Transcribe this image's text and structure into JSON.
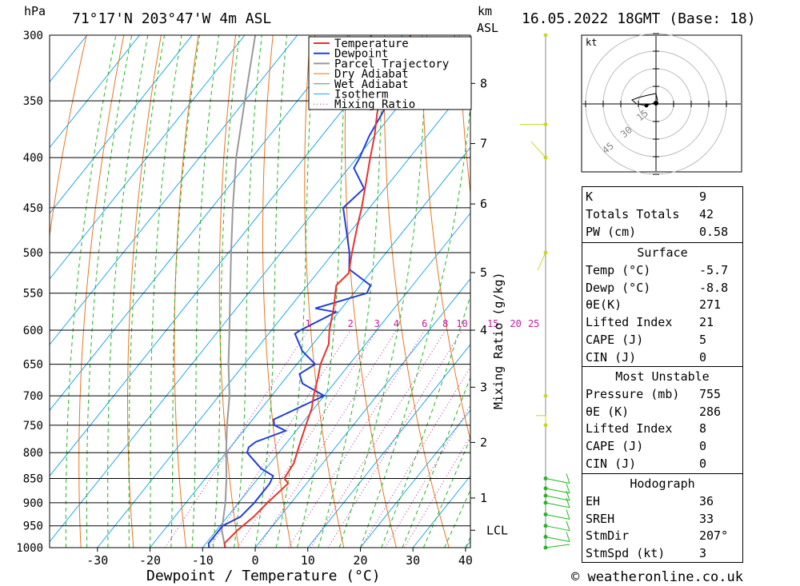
{
  "header": {
    "hpa_label": "hPa",
    "station": "71°17'N 203°47'W 4m ASL",
    "km_label": "km",
    "asl_label": "ASL",
    "datetime": "16.05.2022 18GMT (Base: 18)"
  },
  "chart_data": {
    "type": "line",
    "title": "71°17'N 203°47'W 4m ASL",
    "xlabel": "Dewpoint / Temperature (°C)",
    "ylabel": "hPa",
    "right_axis_label": "Mixing Ratio (g/kg)",
    "xlim": [
      -40,
      40
    ],
    "ylim": [
      1000,
      300
    ],
    "y_log_scale": true,
    "x_ticks": [
      -30,
      -20,
      -10,
      0,
      10,
      20,
      30,
      40
    ],
    "pressure_levels": [
      300,
      350,
      400,
      450,
      500,
      550,
      600,
      650,
      700,
      750,
      800,
      850,
      900,
      950,
      1000
    ],
    "height_km_ticks": [
      {
        "label": "8",
        "p": 336
      },
      {
        "label": "7",
        "p": 387
      },
      {
        "label": "6",
        "p": 446
      },
      {
        "label": "5",
        "p": 524
      },
      {
        "label": "4",
        "p": 600
      },
      {
        "label": "3",
        "p": 686
      },
      {
        "label": "2",
        "p": 781
      },
      {
        "label": "1",
        "p": 890
      },
      {
        "label": "LCL",
        "p": 960
      }
    ],
    "mixing_ratio_labels": [
      "1",
      "2",
      "3",
      "4",
      "6",
      "8",
      "10",
      "15",
      "20",
      "25"
    ],
    "legend": [
      "Temperature",
      "Dewpoint",
      "Parcel Trajectory",
      "Dry Adiabat",
      "Wet Adiabat",
      "Isotherm",
      "Mixing Ratio"
    ],
    "legend_position": "top-right",
    "series": [
      {
        "name": "Temperature",
        "color": "#e8332b",
        "points": [
          [
            1000,
            -5.7
          ],
          [
            990,
            -6.5
          ],
          [
            960,
            -6.0
          ],
          [
            930,
            -5.0
          ],
          [
            900,
            -4.5
          ],
          [
            860,
            -3.5
          ],
          [
            850,
            -5.0
          ],
          [
            820,
            -5.5
          ],
          [
            800,
            -6.5
          ],
          [
            780,
            -7.5
          ],
          [
            750,
            -9.0
          ],
          [
            720,
            -10.5
          ],
          [
            700,
            -12.0
          ],
          [
            670,
            -14.0
          ],
          [
            650,
            -15.5
          ],
          [
            620,
            -17.0
          ],
          [
            600,
            -19.0
          ],
          [
            570,
            -21.5
          ],
          [
            550,
            -23.5
          ],
          [
            540,
            -24.5
          ],
          [
            525,
            -24.0
          ],
          [
            500,
            -26.5
          ],
          [
            470,
            -29.5
          ],
          [
            450,
            -31.5
          ],
          [
            420,
            -35.0
          ],
          [
            400,
            -37.5
          ],
          [
            380,
            -40.0
          ],
          [
            360,
            -43.0
          ],
          [
            345,
            -45.0
          ],
          [
            340,
            -44.5
          ],
          [
            330,
            -44.5
          ],
          [
            320,
            -45.5
          ],
          [
            310,
            -47.0
          ],
          [
            300,
            -48.5
          ]
        ]
      },
      {
        "name": "Dewpoint",
        "color": "#2040d8",
        "points": [
          [
            1000,
            -8.8
          ],
          [
            990,
            -9.5
          ],
          [
            960,
            -9.5
          ],
          [
            950,
            -9.5
          ],
          [
            930,
            -7.5
          ],
          [
            900,
            -7.0
          ],
          [
            860,
            -7.0
          ],
          [
            845,
            -7.5
          ],
          [
            830,
            -11.0
          ],
          [
            800,
            -16.0
          ],
          [
            790,
            -16.5
          ],
          [
            780,
            -16.0
          ],
          [
            760,
            -12.0
          ],
          [
            750,
            -15.0
          ],
          [
            740,
            -16.0
          ],
          [
            700,
            -10.0
          ],
          [
            680,
            -16.0
          ],
          [
            665,
            -18.0
          ],
          [
            650,
            -16.5
          ],
          [
            630,
            -21.0
          ],
          [
            605,
            -25.0
          ],
          [
            600,
            -24.5
          ],
          [
            575,
            -20.5
          ],
          [
            570,
            -25.0
          ],
          [
            550,
            -17.5
          ],
          [
            540,
            -18.0
          ],
          [
            520,
            -24.5
          ],
          [
            500,
            -27.0
          ],
          [
            450,
            -35.0
          ],
          [
            430,
            -34.0
          ],
          [
            410,
            -39.0
          ],
          [
            400,
            -39.5
          ],
          [
            380,
            -41.0
          ],
          [
            360,
            -42.0
          ],
          [
            345,
            -43.0
          ],
          [
            340,
            -47.5
          ],
          [
            330,
            -53.5
          ],
          [
            320,
            -51.0
          ],
          [
            310,
            -54.0
          ],
          [
            300,
            -56.0
          ]
        ]
      },
      {
        "name": "Parcel Trajectory",
        "color": "#999999",
        "points": [
          [
            1000,
            -5.7
          ],
          [
            960,
            -9.0
          ],
          [
            900,
            -12.5
          ],
          [
            850,
            -16.0
          ],
          [
            800,
            -20.0
          ],
          [
            750,
            -24.0
          ],
          [
            700,
            -28.0
          ],
          [
            650,
            -33.0
          ],
          [
            600,
            -38.0
          ],
          [
            550,
            -43.5
          ],
          [
            500,
            -49.5
          ],
          [
            450,
            -56.0
          ],
          [
            400,
            -63.0
          ],
          [
            350,
            -70.0
          ],
          [
            300,
            -78.0
          ]
        ]
      }
    ],
    "wind_barbs": {
      "levels_p": [
        300,
        370,
        400,
        500,
        700,
        750,
        850,
        870,
        885,
        900,
        925,
        950,
        975,
        1000
      ]
    }
  },
  "hodograph": {
    "unit_label": "kt",
    "ring_labels": [
      "15",
      "30",
      "45"
    ]
  },
  "indices": {
    "k_label": "K",
    "k_value": "9",
    "tt_label": "Totals Totals",
    "tt_value": "42",
    "pw_label": "PW (cm)",
    "pw_value": "0.58",
    "surface_title": "Surface",
    "surface": [
      {
        "label": "Temp (°C)",
        "value": "-5.7"
      },
      {
        "label": "Dewp (°C)",
        "value": "-8.8"
      },
      {
        "label": "θE(K)",
        "value": "271"
      },
      {
        "label": "Lifted Index",
        "value": "21"
      },
      {
        "label": "CAPE (J)",
        "value": "5"
      },
      {
        "label": "CIN (J)",
        "value": "0"
      }
    ],
    "mu_title": "Most Unstable",
    "mu": [
      {
        "label": "Pressure (mb)",
        "value": "755"
      },
      {
        "label": "θE (K)",
        "value": "286"
      },
      {
        "label": "Lifted Index",
        "value": "8"
      },
      {
        "label": "CAPE (J)",
        "value": "0"
      },
      {
        "label": "CIN (J)",
        "value": "0"
      }
    ],
    "hodo_title": "Hodograph",
    "hodo": [
      {
        "label": "EH",
        "value": "36"
      },
      {
        "label": "SREH",
        "value": "33"
      },
      {
        "label": "StmDir",
        "value": "207°"
      },
      {
        "label": "StmSpd (kt)",
        "value": "3"
      }
    ]
  },
  "footer": {
    "copyright": "© weatheronline.co.uk"
  }
}
